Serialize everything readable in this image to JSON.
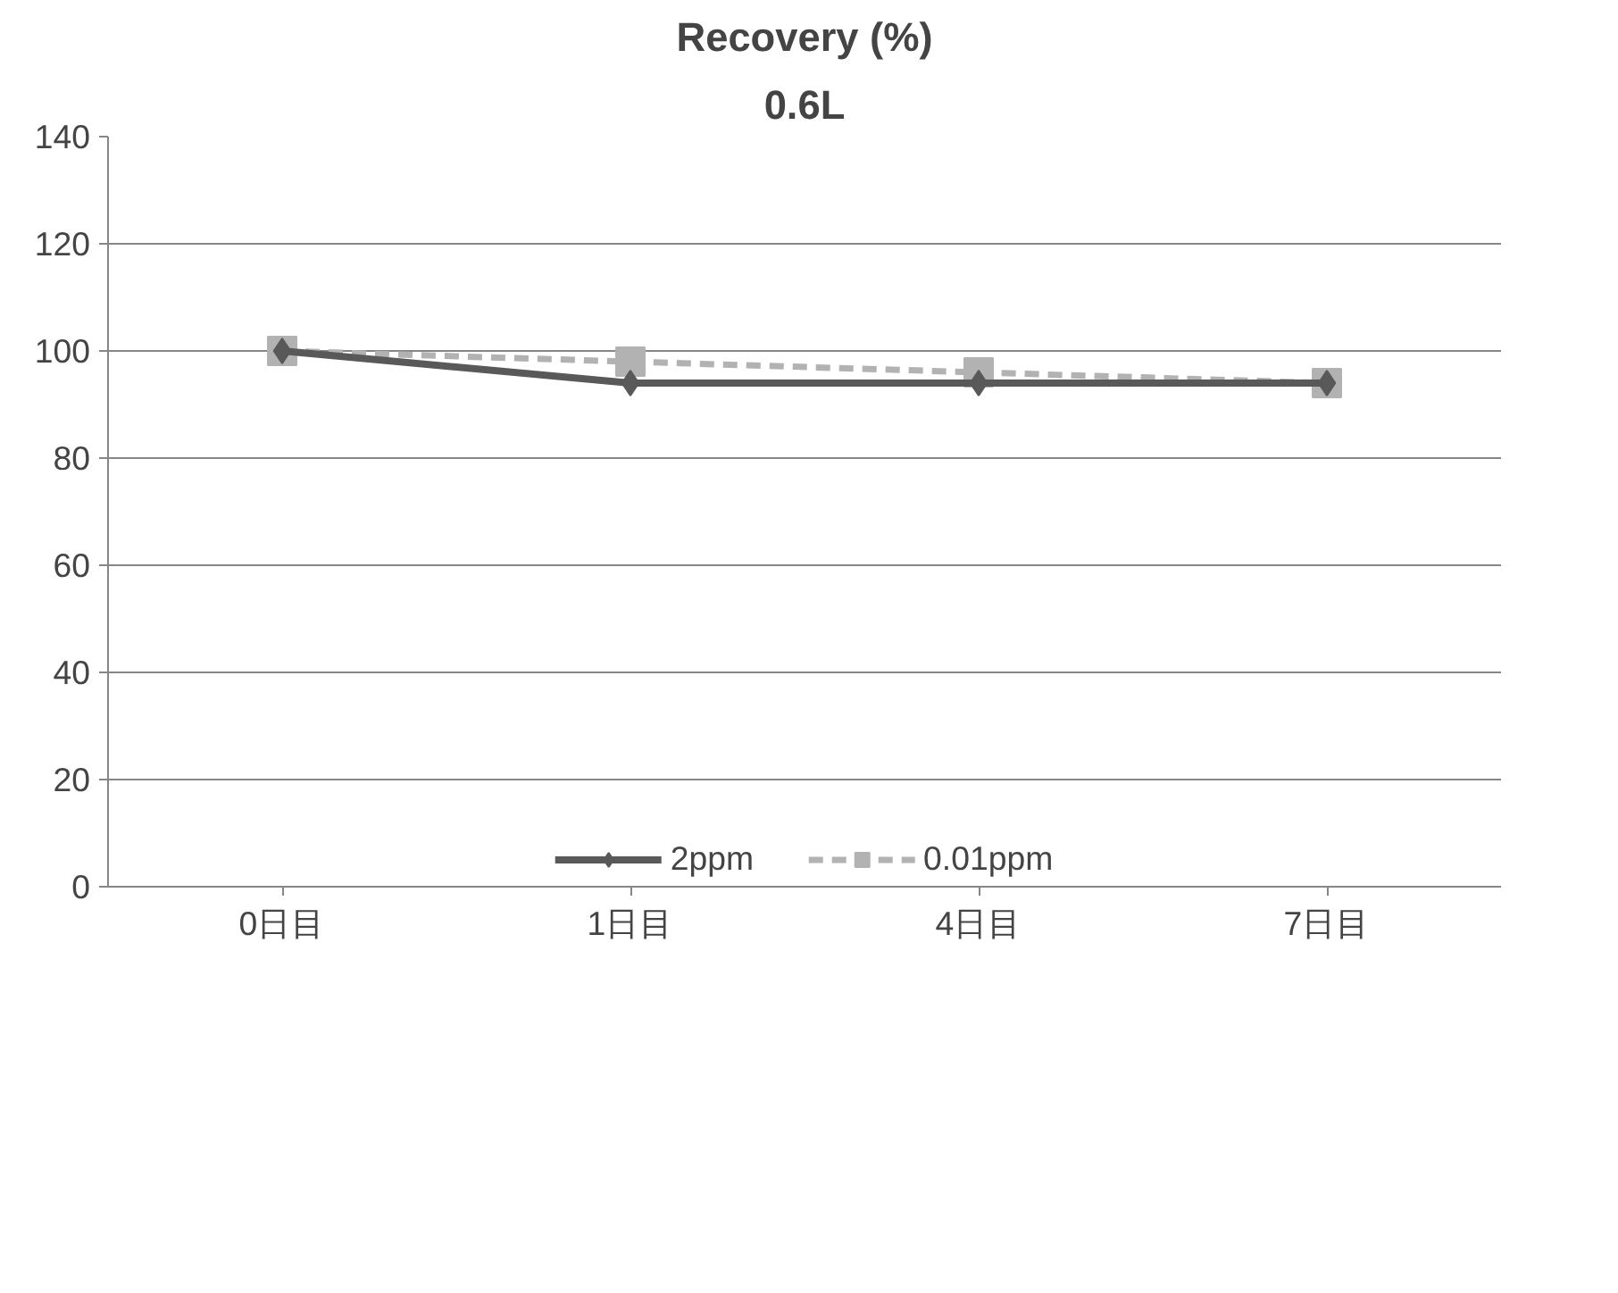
{
  "chart_data": {
    "type": "line",
    "title": "Recovery (%)",
    "subtitle": "0.6L",
    "categories": [
      "0日目",
      "1日目",
      "4日目",
      "7日目"
    ],
    "series": [
      {
        "name": "2ppm",
        "color": "#595959",
        "values": [
          100,
          94,
          94,
          94
        ],
        "marker": "diamond",
        "line_style": "solid"
      },
      {
        "name": "0.01ppm",
        "color": "#b2b2b2",
        "values": [
          100,
          98,
          96,
          94
        ],
        "marker": "square",
        "line_style": "dashed"
      }
    ],
    "ylim": [
      0,
      140
    ],
    "yticks": [
      0,
      20,
      40,
      60,
      80,
      100,
      120,
      140
    ],
    "grid": "y",
    "legend": "bottom"
  }
}
